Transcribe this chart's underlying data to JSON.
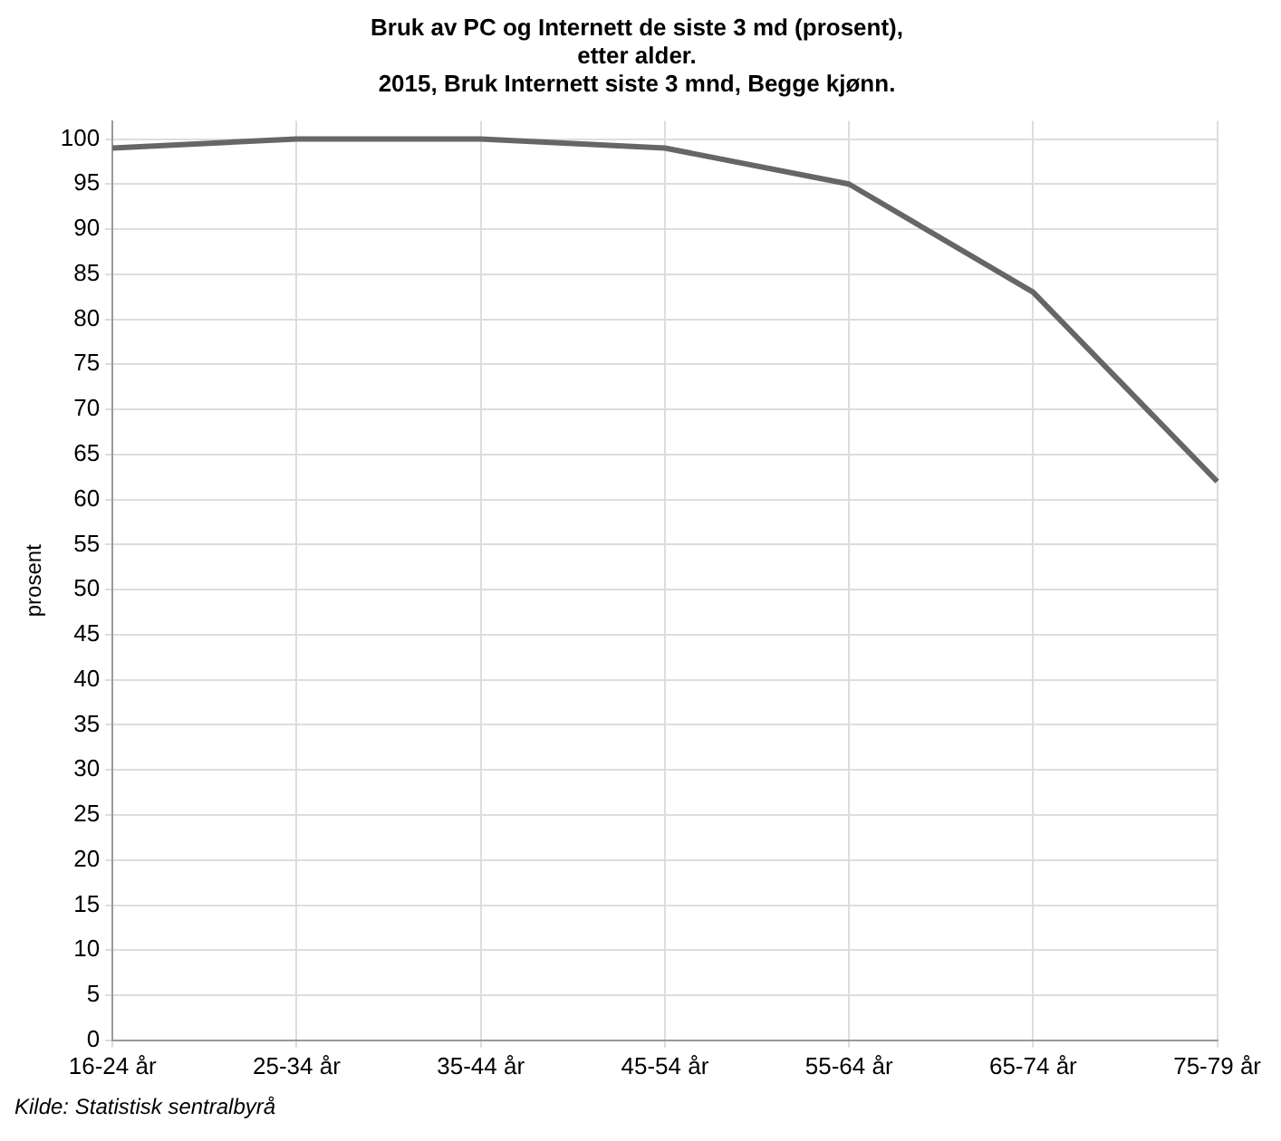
{
  "chart_data": {
    "type": "line",
    "title": "Bruk av PC og Internett de siste 3 md (prosent),\netter alder.\n2015, Bruk Internett siste 3 mnd, Begge kjønn.",
    "ylabel": "prosent",
    "categories": [
      "16-24 år",
      "25-34 år",
      "35-44 år",
      "45-54 år",
      "55-64 år",
      "65-74 år",
      "75-79 år"
    ],
    "series": [
      {
        "color": "#666666",
        "values": [
          99,
          100,
          100,
          99,
          95,
          83,
          62
        ]
      }
    ],
    "ylim": [
      0,
      102
    ],
    "yticks": [
      0,
      5,
      10,
      15,
      20,
      25,
      30,
      35,
      40,
      45,
      50,
      55,
      60,
      65,
      70,
      75,
      80,
      85,
      90,
      95,
      100
    ],
    "grid": true,
    "legend": false,
    "marker": "none",
    "line_style": "solid",
    "annotations": [
      "Kilde: Statistisk sentralbyrå"
    ]
  }
}
